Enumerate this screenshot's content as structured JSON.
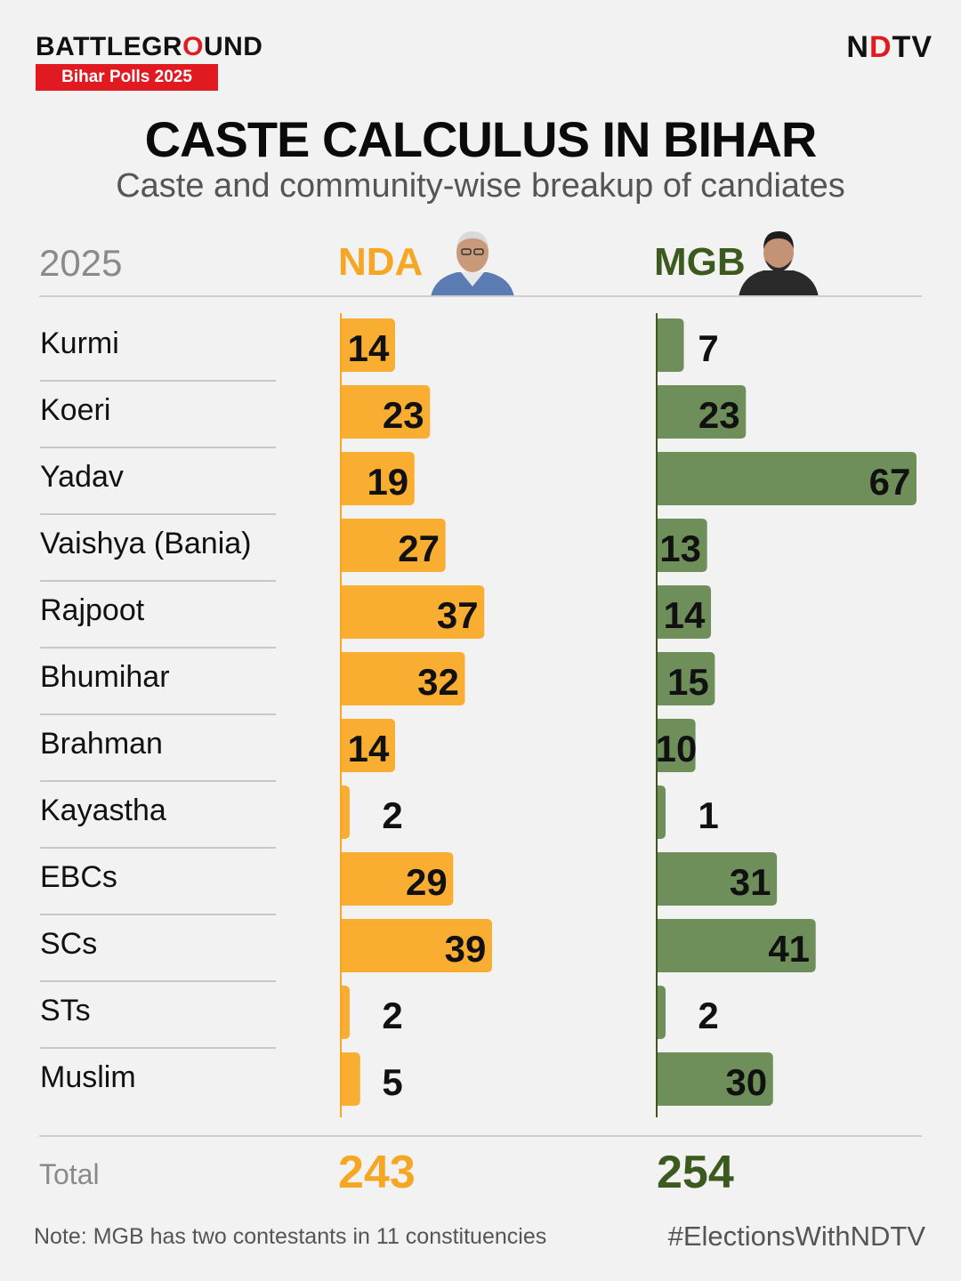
{
  "brand": {
    "title_pre": "BATTLEGR",
    "title_mark": "O",
    "title_post": "UND",
    "badge": "Bihar Polls 2025"
  },
  "logo": {
    "pre": "N",
    "mark": "D",
    "post": "TV"
  },
  "title": "CASTE CALCULUS IN BIHAR",
  "subtitle": "Caste and community-wise breakup of candiates",
  "colors": {
    "nda": "#f9ae31",
    "mgb": "#6e8f5a",
    "nda_text": "#f5a623",
    "mgb_text": "#3d5a1e"
  },
  "chart_data": {
    "type": "bar",
    "title": "CASTE CALCULUS IN BIHAR",
    "year_label": "2025",
    "categories": [
      "Kurmi",
      "Koeri",
      "Yadav",
      "Vaishya (Bania)",
      "Rajpoot",
      "Bhumihar",
      "Brahman",
      "Kayastha",
      "EBCs",
      "SCs",
      "STs",
      "Muslim"
    ],
    "series": [
      {
        "name": "NDA",
        "values": [
          14,
          23,
          19,
          27,
          37,
          32,
          14,
          2,
          29,
          39,
          2,
          5
        ]
      },
      {
        "name": "MGB",
        "values": [
          7,
          23,
          67,
          13,
          14,
          15,
          10,
          1,
          31,
          41,
          2,
          30
        ]
      }
    ],
    "xlim": [
      0,
      67
    ]
  },
  "totals": {
    "label": "Total",
    "nda": "243",
    "mgb": "254"
  },
  "note": "Note: MGB has two contestants in 11 constituencies",
  "hashtag": "#ElectionsWithNDTV"
}
